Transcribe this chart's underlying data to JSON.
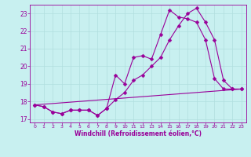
{
  "title": "",
  "xlabel": "Windchill (Refroidissement éolien,°C)",
  "background_color": "#c8f0f0",
  "line_color": "#990099",
  "grid_color": "#b0dede",
  "xlim": [
    -0.5,
    23.5
  ],
  "ylim": [
    16.8,
    23.5
  ],
  "xticks": [
    0,
    1,
    2,
    3,
    4,
    5,
    6,
    7,
    8,
    9,
    10,
    11,
    12,
    13,
    14,
    15,
    16,
    17,
    18,
    19,
    20,
    21,
    22,
    23
  ],
  "yticks": [
    17,
    18,
    19,
    20,
    21,
    22,
    23
  ],
  "line1_x": [
    0,
    1,
    2,
    3,
    4,
    5,
    6,
    7,
    8,
    9,
    10,
    11,
    12,
    13,
    14,
    15,
    16,
    17,
    18,
    19,
    20,
    21,
    22,
    23
  ],
  "line1_y": [
    17.8,
    17.7,
    17.4,
    17.3,
    17.5,
    17.5,
    17.5,
    17.2,
    17.6,
    19.5,
    19.0,
    20.5,
    20.6,
    20.4,
    21.8,
    23.2,
    22.8,
    22.7,
    22.5,
    21.5,
    19.3,
    18.7,
    18.7,
    18.7
  ],
  "line2_x": [
    0,
    1,
    2,
    3,
    4,
    5,
    6,
    7,
    8,
    9,
    10,
    11,
    12,
    13,
    14,
    15,
    16,
    17,
    18,
    19,
    20,
    21,
    22,
    23
  ],
  "line2_y": [
    17.8,
    17.7,
    17.4,
    17.3,
    17.5,
    17.5,
    17.5,
    17.2,
    17.6,
    18.1,
    18.5,
    19.2,
    19.5,
    20.0,
    20.5,
    21.5,
    22.3,
    23.0,
    23.3,
    22.5,
    21.5,
    19.2,
    18.7,
    18.7
  ],
  "line3_x": [
    0,
    23
  ],
  "line3_y": [
    17.8,
    18.7
  ],
  "marker_size": 2.5,
  "line_width": 0.8
}
